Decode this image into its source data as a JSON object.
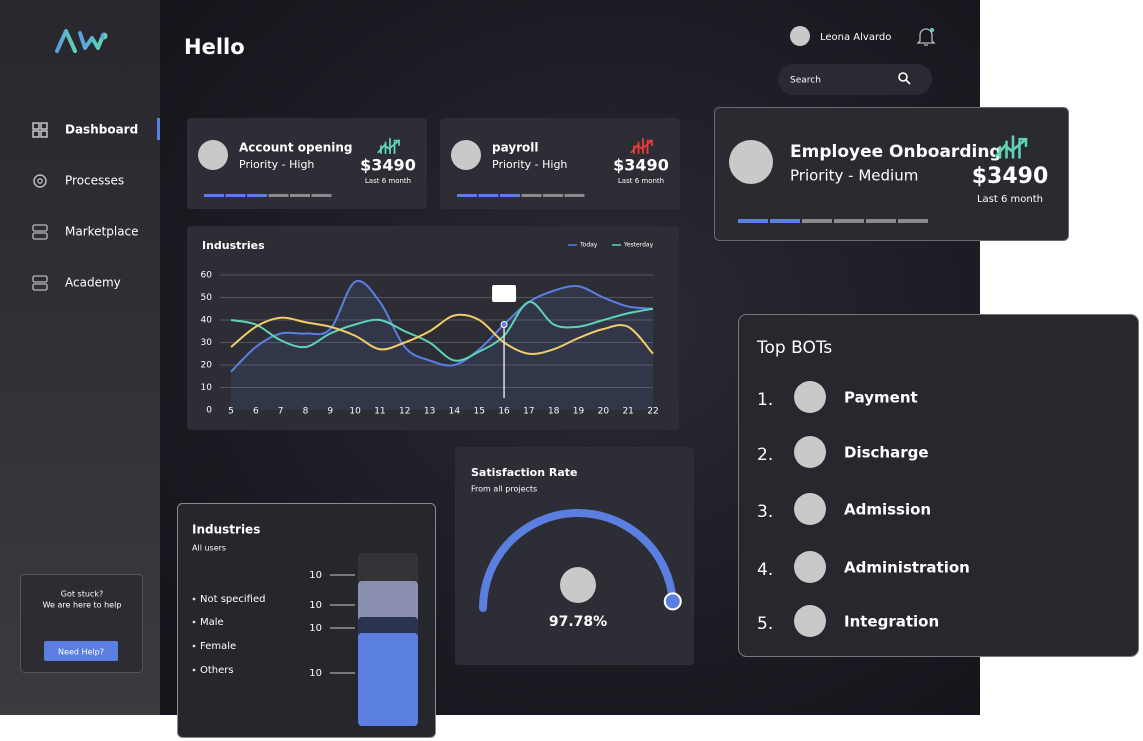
{
  "sidebar": {
    "menu": [
      "Dashboard",
      "Processes",
      "Marketplace",
      "Academy"
    ],
    "help": {
      "line1": "Got stuck?",
      "line2": "We are here to help",
      "button": "Need Help?"
    }
  },
  "header": {
    "title": "Hello",
    "user": "Leona Alvardo",
    "search": "Search"
  },
  "cards": [
    {
      "title": "Account opening",
      "priority": "Priority - High",
      "amount": "$3490",
      "period": "Last 6 month"
    },
    {
      "title": "payroll",
      "priority": "Priority - High",
      "amount": "$3490",
      "period": "Last 6 month"
    },
    {
      "title": "Employee Onboarding",
      "priority": "Priority - Medium",
      "amount": "$3490",
      "period": "Last 6 month"
    }
  ],
  "line_chart": {
    "type": "line",
    "title": "Industries",
    "categories": [
      "5",
      "6",
      "7",
      "8",
      "9",
      "10",
      "11",
      "12",
      "13",
      "14",
      "15",
      "16",
      "17",
      "18",
      "19",
      "20",
      "21",
      "22"
    ],
    "series": [
      {
        "name": "Today",
        "color": "#5b7fe0",
        "values": [
          17,
          28,
          34,
          34,
          36,
          57,
          48,
          28,
          22,
          20,
          27,
          38,
          48,
          53,
          55,
          50,
          46,
          45
        ]
      },
      {
        "name": "Yesterday",
        "color": "#5fd3b5",
        "values": [
          40,
          38,
          31,
          28,
          34,
          38,
          40,
          35,
          30,
          22,
          26,
          33,
          48,
          38,
          37,
          40,
          43,
          45
        ]
      },
      {
        "color": "#f0cd6a",
        "values": [
          28,
          37,
          41,
          39,
          37,
          33,
          27,
          30,
          35,
          42,
          40,
          30,
          25,
          27,
          32,
          36,
          37,
          25
        ]
      }
    ],
    "ylim": [
      0,
      60
    ],
    "yticks": [
      0,
      10,
      20,
      30,
      40,
      50,
      60
    ],
    "grid": true,
    "annotation": {
      "x": "16",
      "value": 38
    }
  },
  "satisfaction": {
    "title": "Satisfaction Rate",
    "subtitle": "From all projects",
    "value": 97.78,
    "value_label": "97.78%"
  },
  "industries_bar": {
    "title": "Industries",
    "subtitle": "All users",
    "legend": [
      "Not specified",
      "Male",
      "Female",
      "Others"
    ],
    "labels": [
      10,
      10,
      10,
      10
    ]
  },
  "top_bots": {
    "title": "Top BOTs",
    "items": [
      {
        "rank": "1.",
        "name": "Payment"
      },
      {
        "rank": "2.",
        "name": "Discharge"
      },
      {
        "rank": "3.",
        "name": "Admission"
      },
      {
        "rank": "4.",
        "name": "Administration"
      },
      {
        "rank": "5.",
        "name": "Integration"
      }
    ]
  }
}
